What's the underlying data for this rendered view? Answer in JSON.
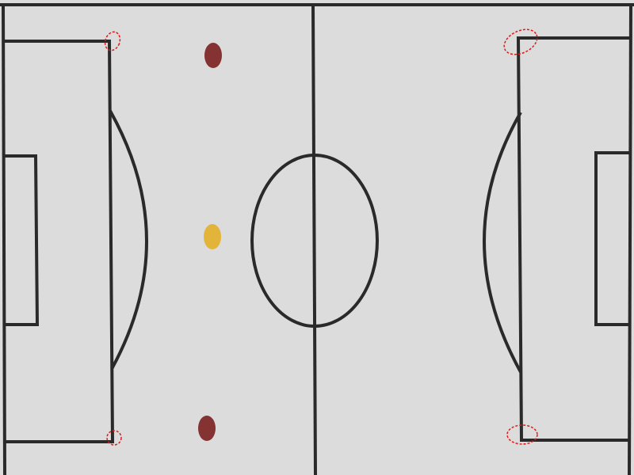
{
  "colors": {
    "paper": "#dcdcdc",
    "line": "#2a2a2a",
    "dot_red": "#7a1f1f",
    "dot_yellow": "#e2b12f",
    "marker": "#e01a1a"
  },
  "pitch": {
    "markers": [
      {
        "name": "marker-left-top-corner"
      },
      {
        "name": "marker-left-bottom-corner"
      },
      {
        "name": "marker-right-top-corner"
      },
      {
        "name": "marker-right-bottom-corner"
      }
    ],
    "players": [
      {
        "name": "player-dot-red-top",
        "color": "dot_red"
      },
      {
        "name": "player-dot-yellow-center",
        "color": "dot_yellow"
      },
      {
        "name": "player-dot-red-bottom",
        "color": "dot_red"
      }
    ]
  }
}
